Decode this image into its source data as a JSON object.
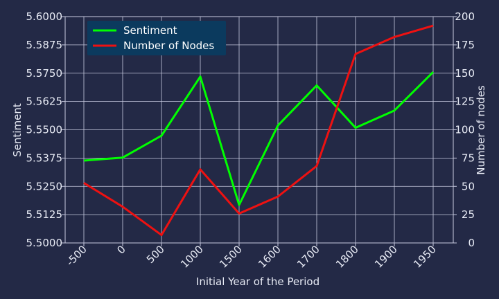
{
  "chart_data": {
    "type": "line",
    "categories": [
      "-500",
      "0",
      "500",
      "1000",
      "1500",
      "1600",
      "1700",
      "1800",
      "1900",
      "1950"
    ],
    "series": [
      {
        "name": "Sentiment",
        "axis": "left",
        "color": "#00ff00",
        "values": [
          5.5364,
          5.5377,
          5.5474,
          5.5735,
          5.5168,
          5.5519,
          5.5696,
          5.5509,
          5.5585,
          5.5755
        ]
      },
      {
        "name": "Number of Nodes",
        "axis": "right",
        "color": "#ee1111",
        "values": [
          53,
          32,
          7,
          65,
          26,
          41,
          68,
          167,
          182,
          192
        ]
      }
    ],
    "xlabel": "Initial Year of the Period",
    "ylabel": "Sentiment",
    "ylabel_right": "Number of nodes",
    "ylim": [
      5.5,
      5.6
    ],
    "ylim_right": [
      0,
      200
    ],
    "yticks": [
      "5.5000",
      "5.5125",
      "5.5250",
      "5.5375",
      "5.5500",
      "5.5625",
      "5.5750",
      "5.5875",
      "5.6000"
    ],
    "yticks_right": [
      "0",
      "25",
      "50",
      "75",
      "100",
      "125",
      "150",
      "175",
      "200"
    ],
    "grid": true,
    "legend_position": "top-left",
    "colors": {
      "background": "#232946",
      "grid": "#c8cbe0",
      "text": "#e8ebf5",
      "legend_background": "#0b3a5e"
    }
  }
}
